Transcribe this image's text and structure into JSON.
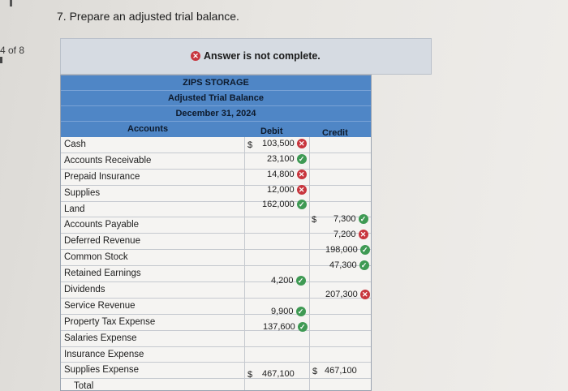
{
  "page": {
    "counter": "4 of 8"
  },
  "question": {
    "text": "7. Prepare an adjusted trial balance."
  },
  "banner": {
    "message": "Answer is not complete."
  },
  "statement": {
    "company": "ZIPS STORAGE",
    "title": "Adjusted Trial Balance",
    "date": "December 31, 2024",
    "col_accounts": "Accounts",
    "col_debit": "Debit",
    "col_credit": "Credit"
  },
  "accounts": [
    "Cash",
    "Accounts Receivable",
    "Prepaid Insurance",
    "Supplies",
    "Land",
    "Accounts Payable",
    "Deferred Revenue",
    "Common Stock",
    "Retained Earnings",
    "Dividends",
    "Service Revenue",
    "Property Tax Expense",
    "Salaries Expense",
    "Insurance Expense",
    "Supplies Expense",
    "Total"
  ],
  "debits": [
    {
      "value": "103,500",
      "status": "incorrect",
      "dollar": "$"
    },
    {
      "value": "23,100",
      "status": "correct"
    },
    {
      "value": "14,800",
      "status": "incorrect"
    },
    {
      "value": "12,000",
      "status": "incorrect"
    },
    {
      "value": "162,000",
      "status": "correct"
    },
    {
      "value": "4,200",
      "status": "correct"
    },
    {
      "value": "9,900",
      "status": "correct"
    },
    {
      "value": "137,600",
      "status": "correct"
    }
  ],
  "credits": [
    {
      "value": "7,300",
      "status": "correct",
      "dollar": "$"
    },
    {
      "value": "7,200",
      "status": "incorrect"
    },
    {
      "value": "198,000",
      "status": "correct"
    },
    {
      "value": "47,300",
      "status": "correct"
    },
    {
      "value": "207,300",
      "status": "incorrect"
    }
  ],
  "totals": {
    "debit": "467,100",
    "credit": "467,100",
    "dollar": "$"
  },
  "colors": {
    "header_blue": "#4f86c6",
    "correct_green": "#3f9a54",
    "incorrect_red": "#c8363e"
  }
}
